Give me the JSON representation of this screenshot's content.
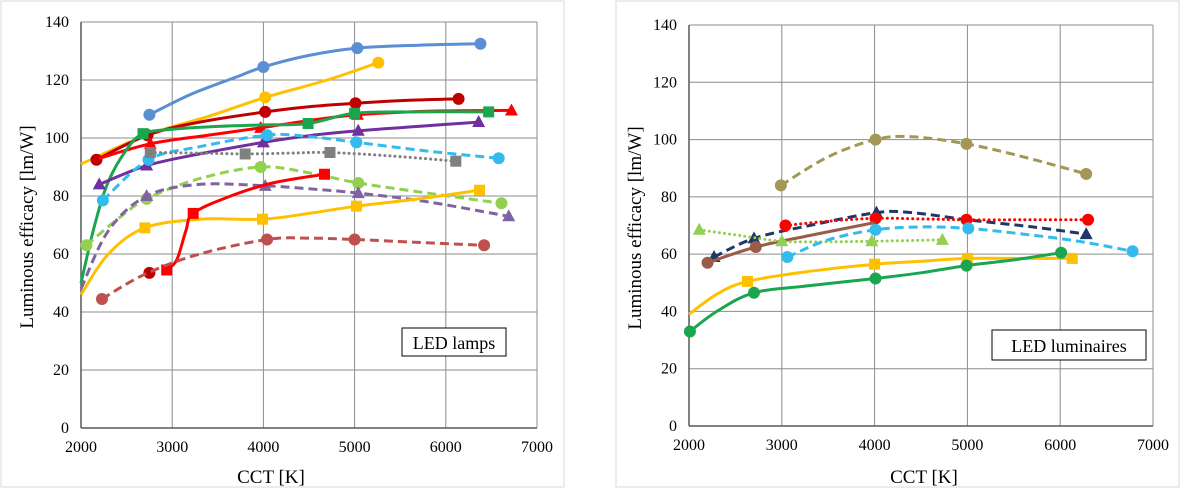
{
  "figure": {
    "background": "#ffffff",
    "panel_border": "#d9d9d9"
  },
  "chart_data": [
    {
      "type": "line",
      "title": "",
      "xlabel": "CCT [K]",
      "ylabel": "Luminous efficacy  [lm/W]",
      "xlim": [
        2000,
        7000
      ],
      "ylim": [
        0,
        140
      ],
      "xticks": [
        2000,
        3000,
        4000,
        5000,
        6000,
        7000
      ],
      "yticks": [
        0,
        20,
        40,
        60,
        80,
        100,
        120,
        140
      ],
      "grid": true,
      "legend": "none",
      "annotation": "LED lamps",
      "series": [
        {
          "color": "#5b8fd4",
          "style": "solid",
          "marker": "circle",
          "x": [
            2750,
            4000,
            5030,
            6380
          ],
          "y": [
            108,
            124.5,
            131,
            132.5
          ],
          "fit": {
            "x": [
              2750,
              3200,
              3700,
              4000,
              4500,
              5030,
              5700,
              6380
            ],
            "y": [
              108,
              115,
              121,
              124.5,
              128.5,
              131,
              132,
              132.5
            ]
          }
        },
        {
          "color": "#ffc000",
          "style": "solid",
          "marker": "circle",
          "x": [
            2720,
            4020,
            5260
          ],
          "y": [
            101,
            114,
            126
          ],
          "fit": {
            "x": [
              2000,
              2720,
              3400,
              4020,
              4700,
              5260
            ],
            "y": [
              91,
              101,
              107.5,
              114,
              120,
              126
            ]
          }
        },
        {
          "color": "#c00000",
          "style": "solid",
          "marker": "circle",
          "x": [
            2170,
            2730,
            4020,
            5010,
            6140
          ],
          "y": [
            92.5,
            101,
            109,
            112,
            113.5
          ],
          "fit": {
            "x": [
              2170,
              2730,
              3300,
              4020,
              4500,
              5010,
              5600,
              6140
            ],
            "y": [
              92.5,
              101,
              105.5,
              109,
              110.8,
              112,
              113,
              113.5
            ]
          }
        },
        {
          "color": "#ff0000",
          "style": "solid",
          "marker": "triangle",
          "x": [
            2760,
            3970,
            5030,
            6720
          ],
          "y": [
            98,
            103.5,
            108,
            109.5
          ],
          "fit": {
            "x": [
              2200,
              2760,
              3400,
              3970,
              4500,
              5030,
              5800,
              6720
            ],
            "y": [
              93,
              98,
              101,
              103.5,
              106,
              108,
              109.2,
              109.5
            ]
          }
        },
        {
          "color": "#1aa64f",
          "style": "solid",
          "marker": "square",
          "x": [
            2680,
            4490,
            5000,
            6470
          ],
          "y": [
            101.5,
            105,
            108.5,
            109
          ],
          "fit": {
            "x": [
              2000,
              2150,
              2300,
              2500,
              2680,
              3000,
              3500,
              4000,
              4490,
              5000,
              5700,
              6470
            ],
            "y": [
              50,
              70,
              85,
              96,
              101.5,
              103,
              104,
              104.5,
              105,
              108.5,
              109,
              109
            ]
          }
        },
        {
          "color": "#7030a0",
          "style": "solid",
          "marker": "triangle",
          "x": [
            2200,
            2720,
            4000,
            5040,
            6360
          ],
          "y": [
            84,
            90.5,
            98.5,
            102.5,
            105.5
          ],
          "fit": {
            "x": [
              2200,
              2720,
              3300,
              4000,
              4500,
              5040,
              5700,
              6360
            ],
            "y": [
              84,
              90.5,
              94.5,
              98.5,
              100.8,
              102.5,
              104,
              105.5
            ]
          }
        },
        {
          "color": "#33bbee",
          "style": "dashed",
          "marker": "circle",
          "x": [
            2240,
            2740,
            4040,
            5020,
            6580
          ],
          "y": [
            78.5,
            92.5,
            101,
            98.5,
            93
          ],
          "fit": {
            "x": [
              2240,
              2740,
              3300,
              4040,
              4500,
              5020,
              5800,
              6580
            ],
            "y": [
              78.5,
              92.5,
              97,
              101,
              100.5,
              98.5,
              95.5,
              93
            ]
          }
        },
        {
          "color": "#808080",
          "style": "dotted",
          "marker": "square",
          "x": [
            2760,
            3800,
            4730,
            6110
          ],
          "y": [
            95,
            94.5,
            95,
            92
          ],
          "fit": {
            "x": [
              2760,
              3300,
              3800,
              4300,
              4730,
              5400,
              6110
            ],
            "y": [
              95,
              94.8,
              94.5,
              94.8,
              95,
              93.8,
              92
            ]
          }
        },
        {
          "color": "#92d050",
          "style": "dashed",
          "marker": "circle",
          "x": [
            2060,
            2720,
            3970,
            5040,
            6610
          ],
          "y": [
            63,
            79,
            90,
            84.5,
            77.5
          ],
          "fit": {
            "x": [
              2060,
              2400,
              2720,
              3300,
              3970,
              4500,
              5040,
              5800,
              6610
            ],
            "y": [
              63,
              72,
              79,
              86,
              90,
              88,
              84.5,
              81,
              77.5
            ]
          }
        },
        {
          "color": "#8064a2",
          "style": "dashed",
          "marker": "triangle",
          "x": [
            2720,
            4020,
            5040,
            6690
          ],
          "y": [
            80,
            83.5,
            81,
            73
          ],
          "fit": {
            "x": [
              2000,
              2300,
              2720,
              3300,
              4020,
              4500,
              5040,
              5800,
              6690
            ],
            "y": [
              48,
              68,
              80,
              84,
              83.5,
              82.5,
              81,
              78,
              73
            ]
          }
        },
        {
          "color": "#ffc000",
          "style": "solid",
          "marker": "square",
          "x": [
            2700,
            3990,
            5020,
            6370
          ],
          "y": [
            69,
            72,
            76.5,
            82
          ],
          "fit": {
            "x": [
              2000,
              2300,
              2700,
              3300,
              3990,
              4500,
              5020,
              5700,
              6370
            ],
            "y": [
              46,
              60,
              69,
              72,
              72,
              74,
              76.5,
              79,
              82
            ]
          }
        },
        {
          "color": "#ff0000",
          "style": "solid",
          "marker": "square",
          "x": [
            2940,
            3230,
            4670
          ],
          "y": [
            54.5,
            74,
            87.5
          ],
          "fit": {
            "x": [
              2940,
              3050,
              3150,
              3230,
              3600,
              4100,
              4670
            ],
            "y": [
              54.5,
              58,
              68,
              74,
              79.5,
              84.5,
              87.5
            ]
          }
        },
        {
          "color": "#c00000",
          "style": "none",
          "marker": "circle",
          "x": [
            2750
          ],
          "y": [
            53.5
          ]
        },
        {
          "color": "#c0504d",
          "style": "dashed",
          "marker": "circle",
          "x": [
            2230,
            4040,
            5000,
            6420
          ],
          "y": [
            44.5,
            65,
            65,
            63
          ],
          "fit": {
            "x": [
              2230,
              2700,
              3300,
              4040,
              4500,
              5000,
              5700,
              6420
            ],
            "y": [
              44.5,
              53,
              60,
              65,
              65.5,
              65,
              64,
              63
            ]
          }
        }
      ]
    },
    {
      "type": "line",
      "title": "",
      "xlabel": "CCT [K]",
      "ylabel": "Luminous efficacy  [lm/W]",
      "xlim": [
        2000,
        7000
      ],
      "ylim": [
        0,
        140
      ],
      "xticks": [
        2000,
        3000,
        4000,
        5000,
        6000,
        7000
      ],
      "yticks": [
        0,
        20,
        40,
        60,
        80,
        100,
        120,
        140
      ],
      "grid": true,
      "legend": "none",
      "annotation": "LED luminaires",
      "series": [
        {
          "color": "#a39755",
          "style": "dashed",
          "marker": "circle",
          "x": [
            2990,
            4010,
            4990,
            6280
          ],
          "y": [
            84,
            100,
            98.5,
            88
          ],
          "fit": {
            "x": [
              2990,
              3500,
              4010,
              4400,
              4990,
              5600,
              6280
            ],
            "y": [
              84,
              94,
              100,
              101,
              98.5,
              94,
              88
            ]
          }
        },
        {
          "color": "#1f3864",
          "style": "dashed",
          "marker": "triangle",
          "x": [
            2270,
            2700,
            4020,
            6280
          ],
          "y": [
            59,
            65.5,
            74.5,
            67
          ],
          "fit": {
            "x": [
              2270,
              2700,
              3300,
              4020,
              4400,
              5000,
              5700,
              6280
            ],
            "y": [
              59,
              65.5,
              70,
              74.5,
              74.5,
              72,
              69.5,
              67
            ]
          }
        },
        {
          "color": "#ff0000",
          "style": "dotted",
          "marker": "circle",
          "x": [
            3040,
            4010,
            4990,
            6300
          ],
          "y": [
            70,
            72.5,
            72,
            72
          ],
          "fit": {
            "x": [
              3040,
              3500,
              4010,
              4500,
              4990,
              5600,
              6300
            ],
            "y": [
              70,
              71.5,
              72.5,
              72.3,
              72,
              72,
              72
            ]
          }
        },
        {
          "color": "#9b5b4b",
          "style": "solid",
          "marker": "circle",
          "x": [
            2200,
            2720
          ],
          "y": [
            57,
            62.5
          ],
          "fit": {
            "x": [
              2200,
              2720,
              3300,
              4000
            ],
            "y": [
              57,
              62.5,
              66.5,
              71
            ]
          }
        },
        {
          "color": "#92d050",
          "style": "dotted",
          "marker": "triangle",
          "x": [
            2110,
            3000,
            3970,
            4730
          ],
          "y": [
            68.5,
            64.5,
            64.5,
            65
          ],
          "fit": {
            "x": [
              2110,
              2550,
              3000,
              3500,
              3970,
              4300,
              4730
            ],
            "y": [
              68.5,
              66.5,
              64.5,
              64.3,
              64.5,
              64.7,
              65
            ]
          }
        },
        {
          "color": "#33bbee",
          "style": "dashed",
          "marker": "circle",
          "x": [
            3060,
            4010,
            5010,
            6780
          ],
          "y": [
            59,
            68.5,
            69,
            61
          ],
          "fit": {
            "x": [
              3060,
              3500,
              4010,
              4500,
              5010,
              5600,
              6200,
              6780
            ],
            "y": [
              59,
              65,
              68.5,
              69.5,
              69,
              67,
              64.5,
              61
            ]
          }
        },
        {
          "color": "#ffc000",
          "style": "solid",
          "marker": "square",
          "x": [
            2630,
            4000,
            5000,
            6130
          ],
          "y": [
            50.5,
            56.5,
            58.5,
            58.5
          ],
          "fit": {
            "x": [
              2000,
              2300,
              2630,
              3300,
              4000,
              4500,
              5000,
              5600,
              6130
            ],
            "y": [
              39,
              46,
              50.5,
              54,
              56.5,
              57.5,
              58.5,
              58.5,
              58.5
            ]
          }
        },
        {
          "color": "#1aa64f",
          "style": "solid",
          "marker": "circle",
          "x": [
            2010,
            2700,
            4010,
            4990,
            6010
          ],
          "y": [
            33,
            46.5,
            51.5,
            56,
            60.5
          ],
          "fit": {
            "x": [
              2010,
              2300,
              2700,
              3300,
              4010,
              4500,
              4990,
              5500,
              6010
            ],
            "y": [
              33,
              40,
              46.5,
              49,
              51.5,
              53.5,
              56,
              58,
              60.5
            ]
          }
        }
      ]
    }
  ]
}
